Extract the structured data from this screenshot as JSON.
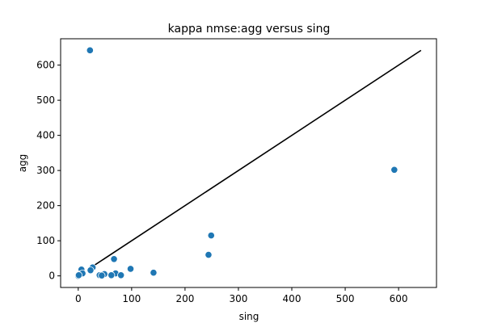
{
  "chart_data": {
    "type": "scatter",
    "title": "kappa nmse:agg versus sing",
    "xlabel": "sing",
    "ylabel": "agg",
    "xlim": [
      -33,
      671
    ],
    "ylim": [
      -33,
      675
    ],
    "xticks": [
      0,
      100,
      200,
      300,
      400,
      500,
      600
    ],
    "yticks": [
      0,
      100,
      200,
      300,
      400,
      500,
      600
    ],
    "grid": false,
    "marker_color": "#1f77b4",
    "line_color": "#000000",
    "points": [
      {
        "x": 22,
        "y": 642
      },
      {
        "x": 592,
        "y": 302
      },
      {
        "x": 249,
        "y": 115
      },
      {
        "x": 244,
        "y": 60
      },
      {
        "x": 67,
        "y": 48
      },
      {
        "x": 27,
        "y": 24
      },
      {
        "x": 6,
        "y": 18
      },
      {
        "x": 98,
        "y": 20
      },
      {
        "x": 23,
        "y": 16
      },
      {
        "x": 141,
        "y": 9
      },
      {
        "x": 70,
        "y": 7
      },
      {
        "x": 49,
        "y": 5
      },
      {
        "x": 40,
        "y": 2
      },
      {
        "x": 62,
        "y": 2
      },
      {
        "x": 80,
        "y": 2
      },
      {
        "x": 44,
        "y": 1
      },
      {
        "x": 0,
        "y": 1
      },
      {
        "x": 2,
        "y": 3
      },
      {
        "x": 4,
        "y": 5
      },
      {
        "x": 8,
        "y": 7
      },
      {
        "x": 0,
        "y": 0
      },
      {
        "x": 1,
        "y": 2
      }
    ],
    "reference_line": {
      "x": [
        20,
        642
      ],
      "y": [
        20,
        642
      ]
    }
  }
}
